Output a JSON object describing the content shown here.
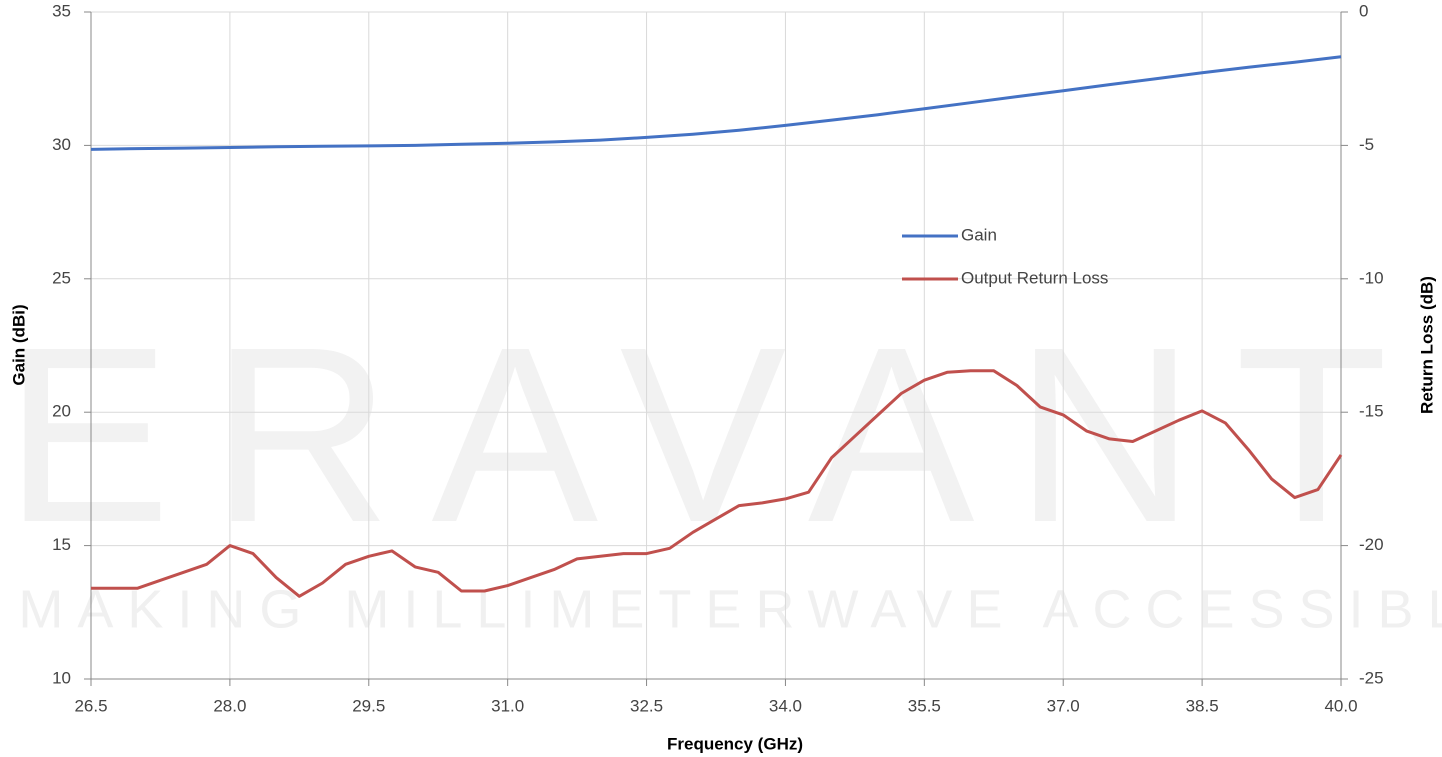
{
  "chart_data": {
    "type": "line",
    "xlabel": "Frequency (GHz)",
    "ylabel": "Gain (dBi)",
    "y2label": "Return Loss (dB)",
    "watermark": {
      "title": "ERAVANT",
      "tagline": "MAKING MILLIMETERWAVE ACCESSIBLE"
    },
    "xlim": [
      26.5,
      40
    ],
    "xticks": [
      26.5,
      {
        "value": 28,
        "label": "28.0"
      },
      29.5,
      {
        "value": 31,
        "label": "31.0"
      },
      32.5,
      {
        "value": 34,
        "label": "34.0"
      },
      35.5,
      {
        "value": 37,
        "label": "37.0"
      },
      38.5,
      {
        "value": 40,
        "label": "40.0"
      }
    ],
    "ylim": [
      10,
      35
    ],
    "yticks": [
      10,
      15,
      20,
      25,
      30,
      35
    ],
    "y2lim": [
      -25,
      0
    ],
    "y2ticks": [
      -25,
      -20,
      -15,
      -10,
      -5,
      0
    ],
    "grid": true,
    "series": [
      {
        "name": "Gain",
        "color": "#4472c4",
        "x": [
          26.5,
          27,
          27.5,
          28,
          28.5,
          29,
          29.5,
          30,
          30.5,
          31,
          31.5,
          32,
          32.5,
          33,
          33.5,
          34,
          34.5,
          35,
          35.5,
          36,
          36.5,
          37,
          37.5,
          38,
          38.5,
          39,
          39.5,
          40
        ],
        "values": [
          29.85,
          29.88,
          29.9,
          29.92,
          29.95,
          29.97,
          29.98,
          30.0,
          30.04,
          30.08,
          30.13,
          30.2,
          30.3,
          30.42,
          30.57,
          30.75,
          30.95,
          31.15,
          31.37,
          31.6,
          31.83,
          32.05,
          32.28,
          32.5,
          32.72,
          32.93,
          33.12,
          33.32
        ]
      },
      {
        "name": "Output Return Loss",
        "color": "#c0504d",
        "axis": "y2",
        "x": [
          26.5,
          26.75,
          27,
          27.25,
          27.5,
          27.75,
          28,
          28.25,
          28.5,
          28.75,
          29,
          29.25,
          29.5,
          29.75,
          30,
          30.25,
          30.5,
          30.75,
          31,
          31.25,
          31.5,
          31.75,
          32,
          32.25,
          32.5,
          32.75,
          33,
          33.25,
          33.5,
          33.75,
          34,
          34.25,
          34.5,
          34.75,
          35,
          35.25,
          35.5,
          35.75,
          36,
          36.25,
          36.5,
          36.75,
          37,
          37.25,
          37.5,
          37.75,
          38,
          38.25,
          38.5,
          38.75,
          39,
          39.25,
          39.5,
          39.75,
          40
        ],
        "values": [
          -21.6,
          -21.6,
          -21.6,
          -21.3,
          -21.0,
          -20.7,
          -20.0,
          -20.3,
          -21.2,
          -21.9,
          -21.4,
          -20.7,
          -20.4,
          -20.2,
          -20.8,
          -21.0,
          -21.7,
          -21.7,
          -21.5,
          -21.2,
          -20.9,
          -20.5,
          -20.4,
          -20.3,
          -20.3,
          -20.1,
          -19.5,
          -19.0,
          -18.5,
          -18.4,
          -18.25,
          -18.0,
          -16.7,
          -15.9,
          -15.1,
          -14.3,
          -13.8,
          -13.5,
          -13.45,
          -13.45,
          -14.0,
          -14.8,
          -15.1,
          -15.7,
          -16.0,
          -16.1,
          -15.7,
          -15.3,
          -14.95,
          -15.4,
          -16.4,
          -17.5,
          -18.2,
          -17.9,
          -16.6
        ]
      }
    ]
  }
}
